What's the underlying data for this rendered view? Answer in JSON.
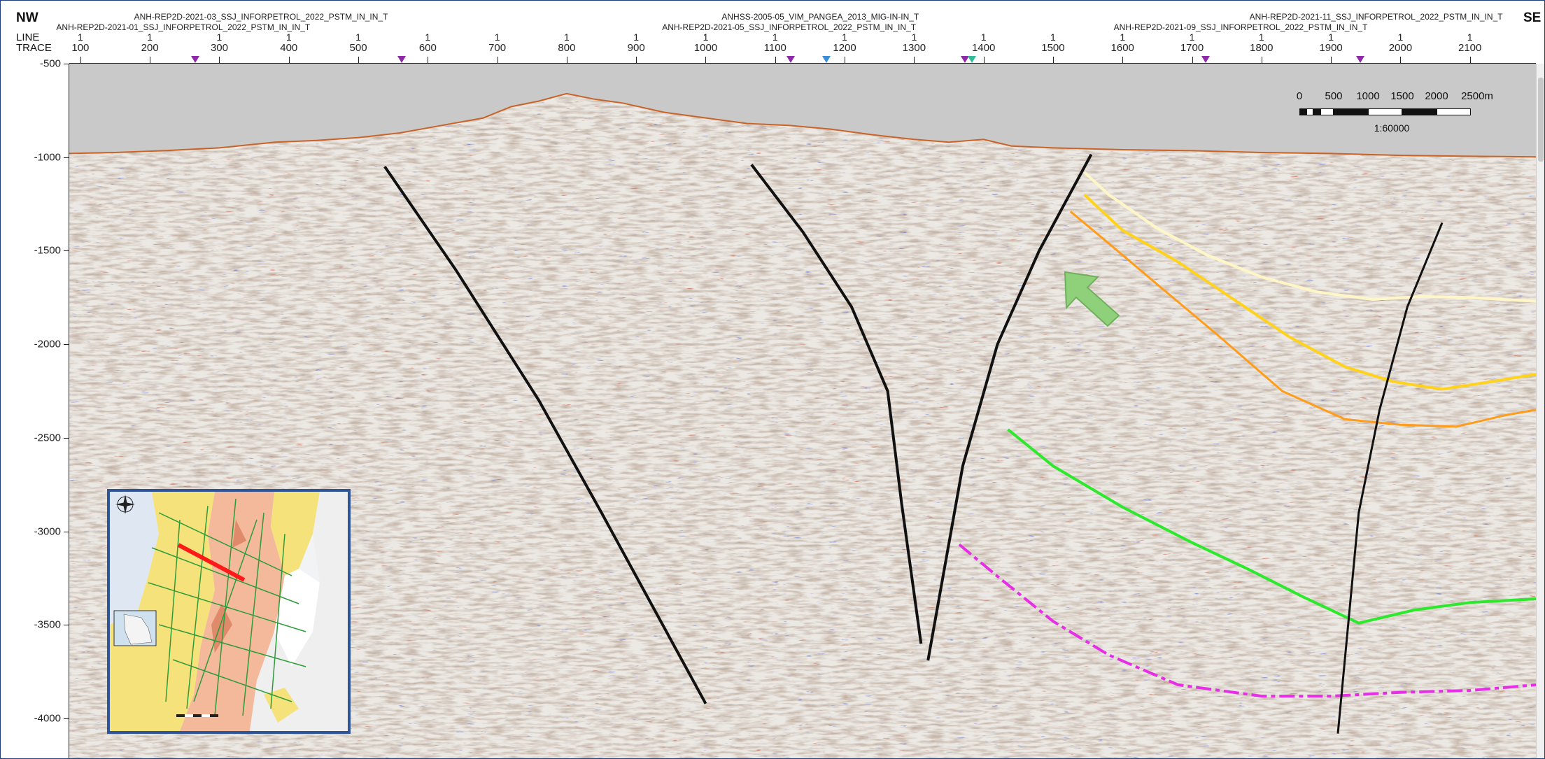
{
  "direction": {
    "left": "NW",
    "right": "SE"
  },
  "header_labels": {
    "line": "LINE",
    "trace": "TRACE"
  },
  "line_names_row1": [
    {
      "text": "ANH-REP2D-2021-03_SSJ_INFORPETROL_2022_PSTM_IN_IN_T",
      "trace": 360
    },
    {
      "text": "ANHSS-2005-05_VIM_PANGEA_2013_MIG-IN-IN_T",
      "trace": 1165
    },
    {
      "text": "ANH-REP2D-2021-11_SSJ_INFORPETROL_2022_PSTM_IN_IN_T",
      "trace": 1965
    }
  ],
  "line_names_row2": [
    {
      "text": "ANH-REP2D-2021-01_SSJ_INFORPETROL_2022_PSTM_IN_IN_T",
      "trace": 248
    },
    {
      "text": "ANH-REP2D-2021-05_SSJ_INFORPETROL_2022_PSTM_IN_IN_T",
      "trace": 1120
    },
    {
      "text": "ANH-REP2D-2021-09_SSJ_INFORPETROL_2022_PSTM_IN_IN_T",
      "trace": 1770
    }
  ],
  "line_tick_value": "1",
  "trace_ticks": [
    "100",
    "200",
    "300",
    "400",
    "500",
    "600",
    "700",
    "800",
    "900",
    "1000",
    "1100",
    "1200",
    "1300",
    "1400",
    "1500",
    "1600",
    "1700",
    "1800",
    "1900",
    "2000",
    "2100"
  ],
  "trace_axis": {
    "min": 84,
    "max": 2195
  },
  "depth_ticks": [
    "-500",
    "-1000",
    "-1500",
    "-2000",
    "-2500",
    "-3000",
    "-3500",
    "-4000"
  ],
  "depth_axis": {
    "top": -500,
    "bottom": -4220
  },
  "intersection_markers": [
    {
      "trace": 265,
      "color": "#8e2aa8"
    },
    {
      "trace": 562,
      "color": "#8e2aa8"
    },
    {
      "trace": 1122,
      "color": "#8e2aa8"
    },
    {
      "trace": 1174,
      "color": "#3a8fd8"
    },
    {
      "trace": 1373,
      "color": "#8e2aa8"
    },
    {
      "trace": 1383,
      "color": "#33bb99"
    },
    {
      "trace": 1720,
      "color": "#8e2aa8"
    },
    {
      "trace": 1942,
      "color": "#8e2aa8"
    }
  ],
  "scale_bar": {
    "labels": [
      "0",
      "500",
      "1000",
      "1500",
      "2000",
      "2500m"
    ],
    "ratio": "1:60000"
  },
  "colors": {
    "horizon_white": "#fff6c8",
    "horizon_yellow": "#ffd21e",
    "horizon_orange": "#ff9c1a",
    "horizon_green": "#2ee82e",
    "horizon_magenta": "#e62ee6",
    "fault": "#111111",
    "arrow": "#8fd17a",
    "surface_line": "#c8642a",
    "air_fill": "#c9c9c9"
  }
}
